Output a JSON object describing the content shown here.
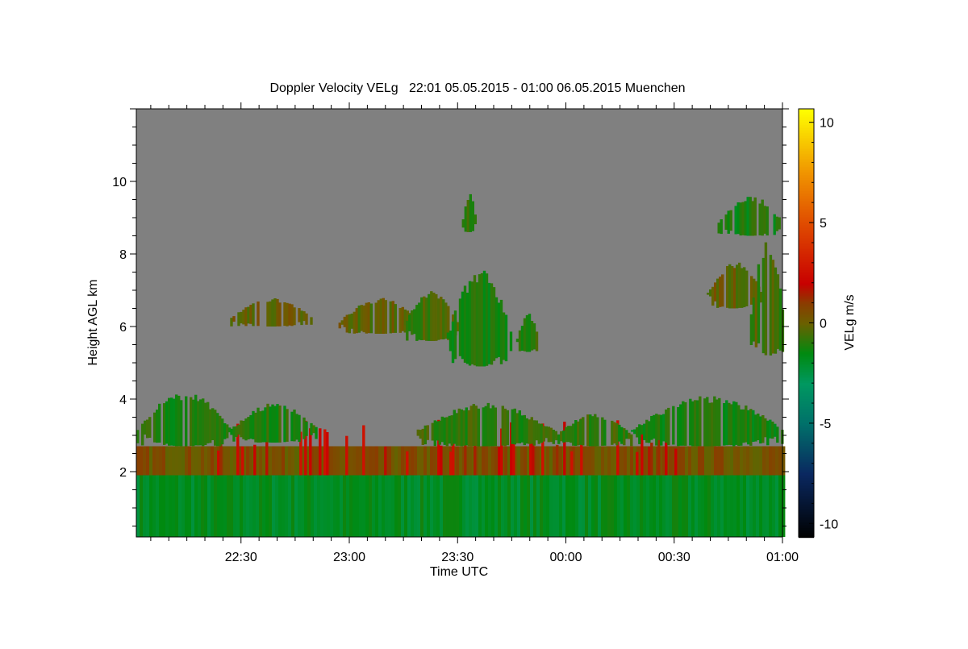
{
  "chart_data": {
    "type": "heatmap",
    "title": "Doppler Velocity VELg   22:01 05.05.2015 - 01:00 06.05.2015 Muenchen",
    "xlabel": "Time UTC",
    "ylabel": "Height AGL km",
    "x_units": "hours after 22:00 UTC",
    "xlim": [
      0.0167,
      3.0
    ],
    "ylim": [
      0.2,
      12.0
    ],
    "x_ticks": [
      {
        "value": 0.5,
        "label": "22:30"
      },
      {
        "value": 1.0,
        "label": "23:00"
      },
      {
        "value": 1.5,
        "label": "23:30"
      },
      {
        "value": 2.0,
        "label": "00:00"
      },
      {
        "value": 2.5,
        "label": "00:30"
      },
      {
        "value": 3.0,
        "label": "01:00"
      }
    ],
    "y_ticks": [
      {
        "value": 2,
        "label": "2"
      },
      {
        "value": 4,
        "label": "4"
      },
      {
        "value": 6,
        "label": "6"
      },
      {
        "value": 8,
        "label": "8"
      },
      {
        "value": 10,
        "label": "10"
      }
    ],
    "background_color": "#808080",
    "colorbar": {
      "label": "VELg m/s",
      "range": [
        -10.67,
        10.67
      ],
      "ticks": [
        {
          "value": 10,
          "label": "10"
        },
        {
          "value": 5,
          "label": "5"
        },
        {
          "value": 0,
          "label": "0"
        },
        {
          "value": -5,
          "label": "-5"
        },
        {
          "value": -10,
          "label": "-10"
        }
      ],
      "stops": [
        {
          "v": -10.67,
          "c": "#000000"
        },
        {
          "v": -7.5,
          "c": "#0a2860"
        },
        {
          "v": -5,
          "c": "#00706a"
        },
        {
          "v": -3,
          "c": "#009860"
        },
        {
          "v": -1.5,
          "c": "#008a10"
        },
        {
          "v": 0,
          "c": "#6a6000"
        },
        {
          "v": 1,
          "c": "#8a3c00"
        },
        {
          "v": 2,
          "c": "#c80000"
        },
        {
          "v": 5,
          "c": "#e04c00"
        },
        {
          "v": 7.5,
          "c": "#f09400"
        },
        {
          "v": 10.67,
          "c": "#ffff00"
        }
      ]
    },
    "regions": [
      {
        "name": "boundary-layer-lower",
        "t": [
          0.0167,
          3.0
        ],
        "h": [
          0.2,
          1.9
        ],
        "velocity": -1.8
      },
      {
        "name": "boundary-layer-top",
        "t": [
          0.0167,
          3.0
        ],
        "h": [
          1.9,
          2.7
        ],
        "velocity": 0.4
      },
      {
        "name": "updraft-plumes",
        "t": [
          0.3,
          2.55
        ],
        "h": [
          1.9,
          3.5
        ],
        "velocity": 2.0
      },
      {
        "name": "low-cloud-1",
        "t": [
          0.0167,
          0.45
        ],
        "h": [
          2.7,
          4.2
        ],
        "velocity": -1.2
      },
      {
        "name": "low-cloud-2",
        "t": [
          0.45,
          0.85
        ],
        "h": [
          2.8,
          3.9
        ],
        "velocity": -1.0
      },
      {
        "name": "low-cloud-3",
        "t": [
          1.3,
          1.95
        ],
        "h": [
          2.7,
          3.9
        ],
        "velocity": -0.8
      },
      {
        "name": "low-cloud-4",
        "t": [
          1.95,
          2.3
        ],
        "h": [
          2.7,
          3.6
        ],
        "velocity": -0.8
      },
      {
        "name": "low-cloud-5",
        "t": [
          2.3,
          3.0
        ],
        "h": [
          2.7,
          4.1
        ],
        "velocity": -1.2
      },
      {
        "name": "mid-cloud-1",
        "t": [
          0.45,
          0.82
        ],
        "h": [
          6.0,
          6.8
        ],
        "velocity": 0.0
      },
      {
        "name": "mid-cloud-2",
        "t": [
          0.95,
          1.33
        ],
        "h": [
          5.8,
          6.8
        ],
        "velocity": -0.1
      },
      {
        "name": "mid-cloud-3",
        "t": [
          1.25,
          1.5
        ],
        "h": [
          5.6,
          7.0
        ],
        "velocity": -0.6
      },
      {
        "name": "mid-cloud-4",
        "t": [
          1.45,
          1.75
        ],
        "h": [
          4.9,
          7.6
        ],
        "velocity": -1.3
      },
      {
        "name": "mid-cloud-5",
        "t": [
          1.77,
          1.87
        ],
        "h": [
          5.3,
          6.4
        ],
        "velocity": -0.9
      },
      {
        "name": "high-cloud-1",
        "t": [
          1.52,
          1.58
        ],
        "h": [
          8.6,
          9.7
        ],
        "velocity": -1.0
      },
      {
        "name": "upper-cloud-1",
        "t": [
          2.65,
          2.9
        ],
        "h": [
          6.5,
          7.8
        ],
        "velocity": 0.0
      },
      {
        "name": "upper-cloud-2",
        "t": [
          2.7,
          3.0
        ],
        "h": [
          8.5,
          9.6
        ],
        "velocity": -1.2
      },
      {
        "name": "upper-cloud-3",
        "t": [
          2.85,
          3.0
        ],
        "h": [
          5.2,
          8.5
        ],
        "velocity": -0.5
      }
    ]
  }
}
